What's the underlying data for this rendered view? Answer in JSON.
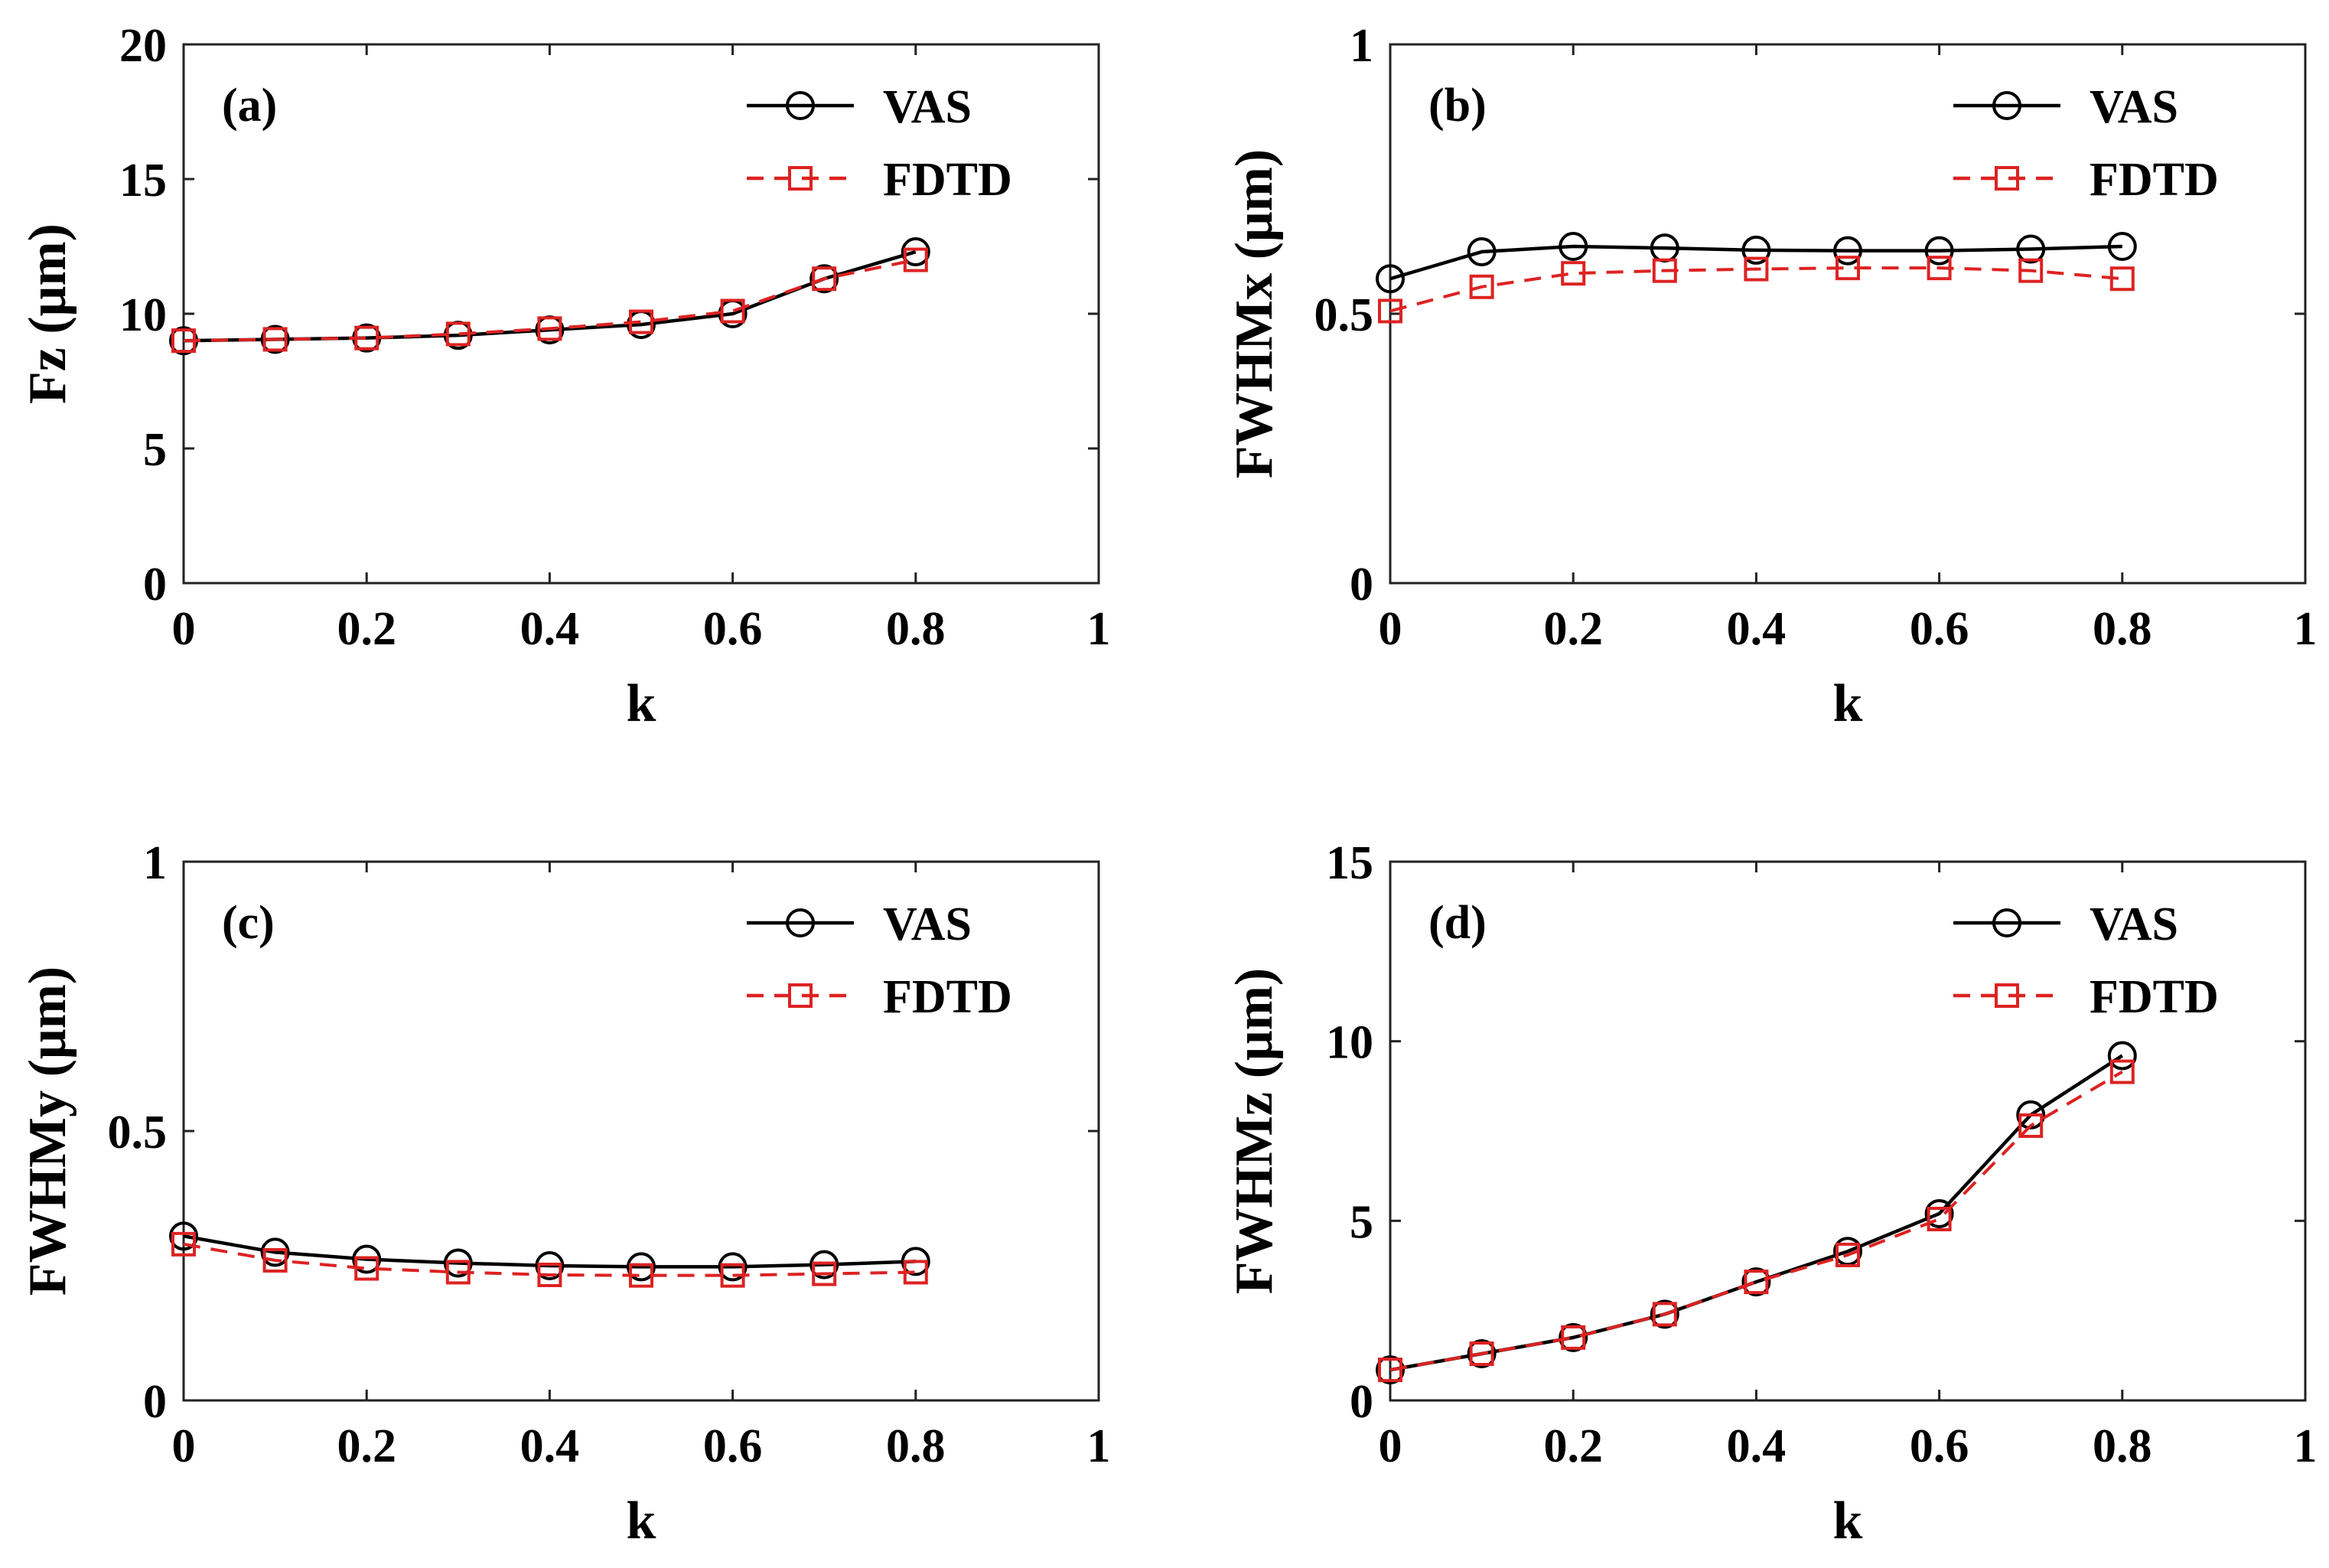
{
  "chart_data": [
    {
      "type": "line",
      "panel_label": "(a)",
      "xlabel": "k",
      "ylabel": "Fz (μm)",
      "xlim": [
        0,
        1
      ],
      "ylim": [
        0,
        20
      ],
      "xticks": [
        0,
        0.2,
        0.4,
        0.6,
        0.8,
        1
      ],
      "xtick_labels": [
        "0",
        "0.2",
        "0.4",
        "0.6",
        "0.8",
        "1"
      ],
      "yticks": [
        0,
        5,
        10,
        15,
        20
      ],
      "ytick_labels": [
        "0",
        "5",
        "10",
        "15",
        "20"
      ],
      "legend": [
        "VAS",
        "FDTD"
      ],
      "legend_position": "top-right",
      "x": [
        0,
        0.1,
        0.2,
        0.3,
        0.4,
        0.5,
        0.6,
        0.7,
        0.8
      ],
      "series": [
        {
          "name": "VAS",
          "values": [
            9.0,
            9.05,
            9.1,
            9.2,
            9.4,
            9.6,
            10.0,
            11.3,
            12.3
          ],
          "color": "#000000",
          "marker": "circle",
          "dash": "solid"
        },
        {
          "name": "FDTD",
          "values": [
            9.0,
            9.05,
            9.1,
            9.25,
            9.45,
            9.7,
            10.1,
            11.3,
            12.0
          ],
          "color": "#dd2222",
          "marker": "square",
          "dash": "dashed"
        }
      ]
    },
    {
      "type": "line",
      "panel_label": "(b)",
      "xlabel": "k",
      "ylabel": "FWHMx (μm)",
      "xlim": [
        0,
        1
      ],
      "ylim": [
        0,
        1
      ],
      "xticks": [
        0,
        0.2,
        0.4,
        0.6,
        0.8,
        1
      ],
      "xtick_labels": [
        "0",
        "0.2",
        "0.4",
        "0.6",
        "0.8",
        "1"
      ],
      "yticks": [
        0,
        0.5,
        1
      ],
      "ytick_labels": [
        "0",
        "0.5",
        "1"
      ],
      "legend": [
        "VAS",
        "FDTD"
      ],
      "legend_position": "top-right",
      "x": [
        0,
        0.1,
        0.2,
        0.3,
        0.4,
        0.5,
        0.6,
        0.7,
        0.8
      ],
      "series": [
        {
          "name": "VAS",
          "values": [
            0.565,
            0.615,
            0.625,
            0.622,
            0.618,
            0.617,
            0.617,
            0.62,
            0.625
          ],
          "color": "#000000",
          "marker": "circle",
          "dash": "solid"
        },
        {
          "name": "FDTD",
          "values": [
            0.505,
            0.55,
            0.575,
            0.58,
            0.583,
            0.585,
            0.585,
            0.58,
            0.565
          ],
          "color": "#dd2222",
          "marker": "square",
          "dash": "dashed"
        }
      ]
    },
    {
      "type": "line",
      "panel_label": "(c)",
      "xlabel": "k",
      "ylabel": "FWHMy (μm)",
      "xlim": [
        0,
        1
      ],
      "ylim": [
        0,
        1
      ],
      "xticks": [
        0,
        0.2,
        0.4,
        0.6,
        0.8,
        1
      ],
      "xtick_labels": [
        "0",
        "0.2",
        "0.4",
        "0.6",
        "0.8",
        "1"
      ],
      "yticks": [
        0,
        0.5,
        1
      ],
      "ytick_labels": [
        "0",
        "0.5",
        "1"
      ],
      "legend": [
        "VAS",
        "FDTD"
      ],
      "legend_position": "top-right",
      "x": [
        0,
        0.1,
        0.2,
        0.3,
        0.4,
        0.5,
        0.6,
        0.7,
        0.8
      ],
      "series": [
        {
          "name": "VAS",
          "values": [
            0.305,
            0.275,
            0.262,
            0.255,
            0.25,
            0.248,
            0.248,
            0.252,
            0.258
          ],
          "color": "#000000",
          "marker": "circle",
          "dash": "solid"
        },
        {
          "name": "FDTD",
          "values": [
            0.29,
            0.26,
            0.245,
            0.238,
            0.233,
            0.232,
            0.232,
            0.235,
            0.238
          ],
          "color": "#dd2222",
          "marker": "square",
          "dash": "dashed"
        }
      ]
    },
    {
      "type": "line",
      "panel_label": "(d)",
      "xlabel": "k",
      "ylabel": "FWHMz (μm)",
      "xlim": [
        0,
        1
      ],
      "ylim": [
        0,
        15
      ],
      "xticks": [
        0,
        0.2,
        0.4,
        0.6,
        0.8,
        1
      ],
      "xtick_labels": [
        "0",
        "0.2",
        "0.4",
        "0.6",
        "0.8",
        "1"
      ],
      "yticks": [
        0,
        5,
        10,
        15
      ],
      "ytick_labels": [
        "0",
        "5",
        "10",
        "15"
      ],
      "legend": [
        "VAS",
        "FDTD"
      ],
      "legend_position": "top-right",
      "x": [
        0,
        0.1,
        0.2,
        0.3,
        0.4,
        0.5,
        0.6,
        0.7,
        0.8
      ],
      "series": [
        {
          "name": "VAS",
          "values": [
            0.85,
            1.3,
            1.75,
            2.4,
            3.3,
            4.15,
            5.2,
            7.95,
            9.6
          ],
          "color": "#000000",
          "marker": "circle",
          "dash": "solid"
        },
        {
          "name": "FDTD",
          "values": [
            0.85,
            1.3,
            1.75,
            2.4,
            3.3,
            4.05,
            5.05,
            7.65,
            9.15
          ],
          "color": "#dd2222",
          "marker": "square",
          "dash": "dashed"
        }
      ]
    }
  ]
}
